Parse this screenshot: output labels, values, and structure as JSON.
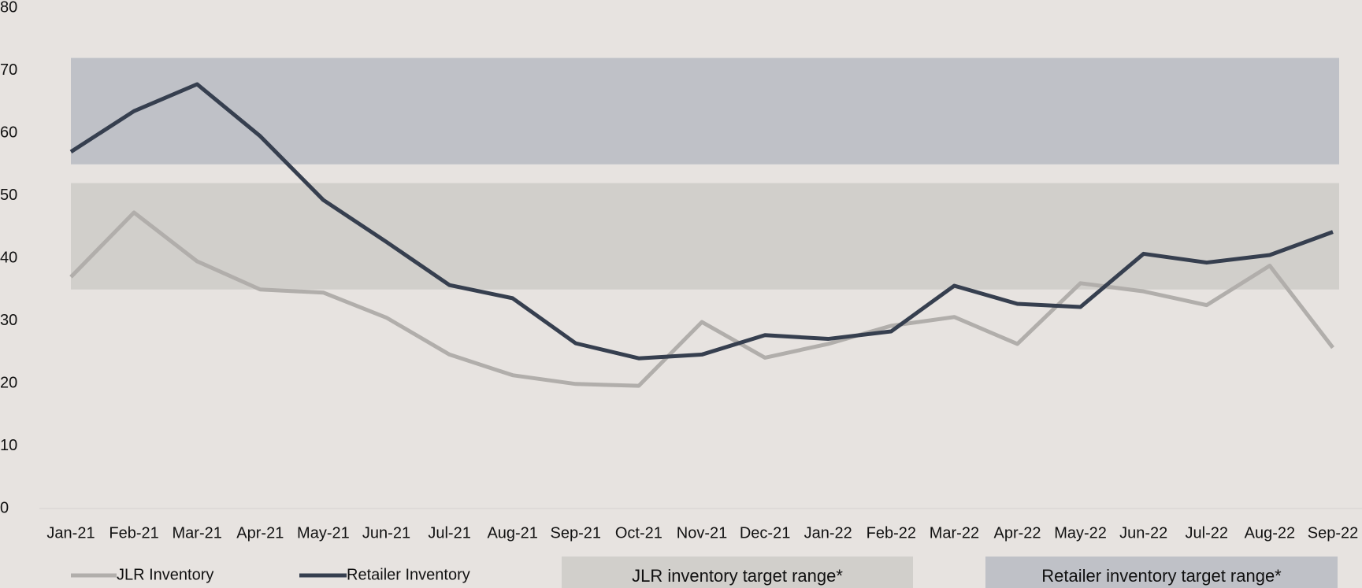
{
  "chart_data": {
    "type": "line",
    "categories": [
      "Jan-21",
      "Feb-21",
      "Mar-21",
      "Apr-21",
      "May-21",
      "Jun-21",
      "Jul-21",
      "Aug-21",
      "Sep-21",
      "Oct-21",
      "Nov-21",
      "Dec-21",
      "Jan-22",
      "Feb-22",
      "Mar-22",
      "Apr-22",
      "May-22",
      "Jun-22",
      "Jul-22",
      "Aug-22",
      "Sep-22"
    ],
    "series": [
      {
        "name": "JLR Inventory",
        "color": "#b1aeab",
        "values": [
          37,
          47.3,
          39.5,
          35,
          34.5,
          30.5,
          24.6,
          21.3,
          19.9,
          19.6,
          29.8,
          24.1,
          26.3,
          29.2,
          30.6,
          26.3,
          36,
          34.7,
          32.5,
          38.8,
          25.7
        ]
      },
      {
        "name": "Retailer Inventory",
        "color": "#363f4f",
        "values": [
          57,
          63.5,
          67.8,
          59.5,
          49.3,
          42.6,
          35.7,
          33.6,
          26.4,
          24,
          24.6,
          27.7,
          27.1,
          28.3,
          35.6,
          32.7,
          32.2,
          40.7,
          39.3,
          40.5,
          44.2
        ]
      }
    ],
    "bands": [
      {
        "name": "JLR inventory target range*",
        "color": "#d1cfcb",
        "range": [
          35,
          52
        ]
      },
      {
        "name": "Retailer inventory target range*",
        "color": "#bfc1c7",
        "range": [
          55,
          72
        ]
      }
    ],
    "ylim": [
      0,
      80
    ],
    "yticks": [
      0,
      10,
      20,
      30,
      40,
      50,
      60,
      70,
      80
    ],
    "legend": "bottom"
  }
}
